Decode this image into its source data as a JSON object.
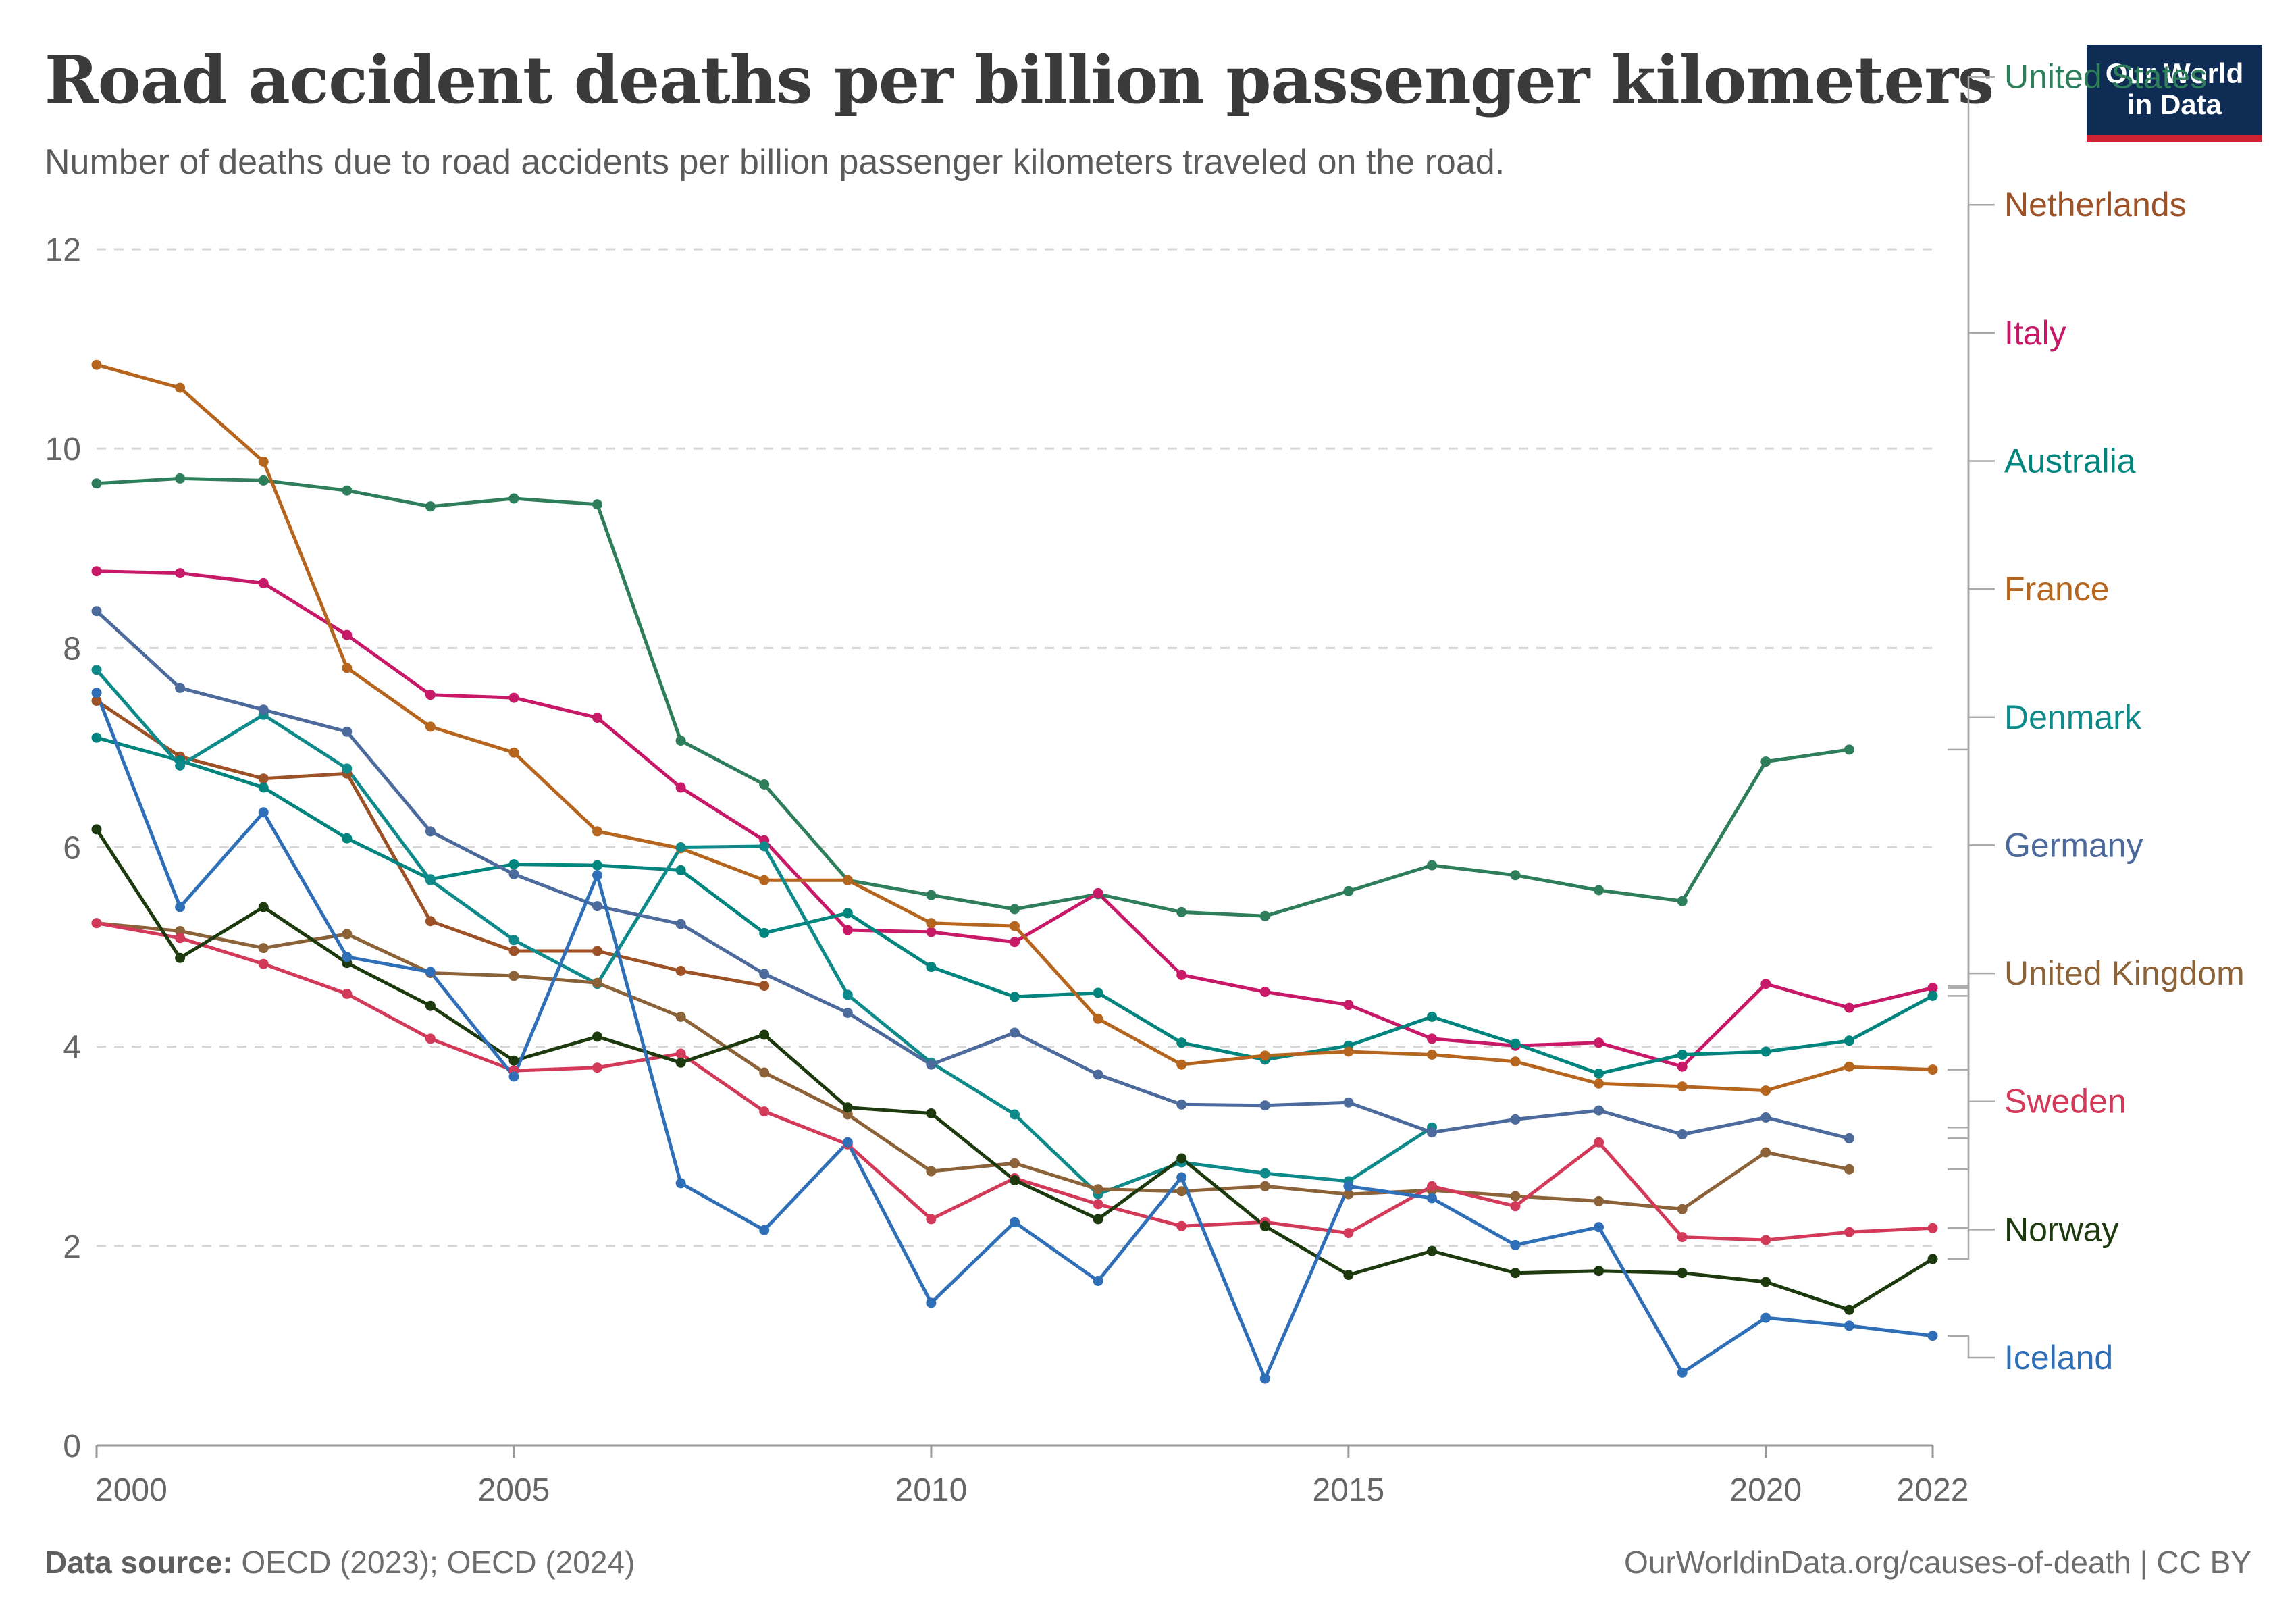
{
  "header": {
    "title": "Road accident deaths per billion passenger kilometers",
    "subtitle": "Number of deaths due to road accidents per billion passenger kilometers traveled on the road.",
    "logo_line1": "Our World",
    "logo_line2": "in Data"
  },
  "footer": {
    "source_label": "Data source:",
    "source_text": " OECD (2023); OECD (2024)",
    "credit": "OurWorldinData.org/causes-of-death | CC BY"
  },
  "chart_data": {
    "type": "line",
    "x_ticks": [
      2000,
      2005,
      2010,
      2015,
      2020,
      2022
    ],
    "y_ticks": [
      0,
      2,
      4,
      6,
      8,
      10,
      12
    ],
    "xlim": [
      2000,
      2022
    ],
    "ylim": [
      0,
      12
    ],
    "grid": "horizontal-dashed",
    "legend": "right-labels",
    "series": [
      {
        "name": "United States",
        "color": "#2e7d5b",
        "points": [
          [
            2000,
            9.65
          ],
          [
            2001,
            9.7
          ],
          [
            2002,
            9.68
          ],
          [
            2003,
            9.58
          ],
          [
            2004,
            9.42
          ],
          [
            2005,
            9.5
          ],
          [
            2006,
            9.44
          ],
          [
            2007,
            7.07
          ],
          [
            2008,
            6.63
          ],
          [
            2009,
            5.67
          ],
          [
            2010,
            5.52
          ],
          [
            2011,
            5.38
          ],
          [
            2012,
            5.53
          ],
          [
            2013,
            5.35
          ],
          [
            2014,
            5.31
          ],
          [
            2015,
            5.56
          ],
          [
            2016,
            5.82
          ],
          [
            2017,
            5.72
          ],
          [
            2018,
            5.57
          ],
          [
            2019,
            5.46
          ],
          [
            2020,
            6.86
          ],
          [
            2021,
            6.98
          ]
        ]
      },
      {
        "name": "Netherlands",
        "color": "#9c5127",
        "points": [
          [
            2000,
            7.47
          ],
          [
            2001,
            6.91
          ],
          [
            2002,
            6.69
          ],
          [
            2003,
            6.74
          ],
          [
            2004,
            5.26
          ],
          [
            2005,
            4.96
          ],
          [
            2006,
            4.96
          ],
          [
            2007,
            4.76
          ],
          [
            2008,
            4.61
          ]
        ]
      },
      {
        "name": "Italy",
        "color": "#c81868",
        "points": [
          [
            2000,
            8.77
          ],
          [
            2001,
            8.75
          ],
          [
            2002,
            8.65
          ],
          [
            2003,
            8.13
          ],
          [
            2004,
            7.53
          ],
          [
            2005,
            7.5
          ],
          [
            2006,
            7.3
          ],
          [
            2007,
            6.6
          ],
          [
            2008,
            6.07
          ],
          [
            2009,
            5.17
          ],
          [
            2010,
            5.15
          ],
          [
            2011,
            5.05
          ],
          [
            2012,
            5.54
          ],
          [
            2013,
            4.72
          ],
          [
            2014,
            4.55
          ],
          [
            2015,
            4.42
          ],
          [
            2016,
            4.08
          ],
          [
            2017,
            4.01
          ],
          [
            2018,
            4.04
          ],
          [
            2019,
            3.8
          ],
          [
            2020,
            4.63
          ],
          [
            2021,
            4.39
          ],
          [
            2022,
            4.59
          ]
        ]
      },
      {
        "name": "Australia",
        "color": "#00847e",
        "points": [
          [
            2000,
            7.1
          ],
          [
            2001,
            6.87
          ],
          [
            2002,
            6.6
          ],
          [
            2003,
            6.09
          ],
          [
            2004,
            5.68
          ],
          [
            2005,
            5.83
          ],
          [
            2006,
            5.82
          ],
          [
            2007,
            5.77
          ],
          [
            2008,
            5.14
          ],
          [
            2009,
            5.34
          ],
          [
            2010,
            4.8
          ],
          [
            2011,
            4.5
          ],
          [
            2012,
            4.54
          ],
          [
            2013,
            4.04
          ],
          [
            2014,
            3.87
          ],
          [
            2015,
            4.01
          ],
          [
            2016,
            4.3
          ],
          [
            2017,
            4.03
          ],
          [
            2018,
            3.73
          ],
          [
            2019,
            3.92
          ],
          [
            2020,
            3.95
          ],
          [
            2021,
            4.06
          ],
          [
            2022,
            4.51
          ]
        ]
      },
      {
        "name": "France",
        "color": "#b5651d",
        "points": [
          [
            2000,
            10.84
          ],
          [
            2001,
            10.61
          ],
          [
            2002,
            9.87
          ],
          [
            2003,
            7.8
          ],
          [
            2004,
            7.21
          ],
          [
            2005,
            6.95
          ],
          [
            2006,
            6.16
          ],
          [
            2007,
            5.99
          ],
          [
            2008,
            5.67
          ],
          [
            2009,
            5.67
          ],
          [
            2010,
            5.24
          ],
          [
            2011,
            5.21
          ],
          [
            2012,
            4.28
          ],
          [
            2013,
            3.82
          ],
          [
            2014,
            3.91
          ],
          [
            2015,
            3.95
          ],
          [
            2016,
            3.92
          ],
          [
            2017,
            3.85
          ],
          [
            2018,
            3.63
          ],
          [
            2019,
            3.6
          ],
          [
            2020,
            3.56
          ],
          [
            2021,
            3.8
          ],
          [
            2022,
            3.77
          ]
        ]
      },
      {
        "name": "Denmark",
        "color": "#0f8a8a",
        "points": [
          [
            2000,
            7.78
          ],
          [
            2001,
            6.82
          ],
          [
            2002,
            7.33
          ],
          [
            2003,
            6.79
          ],
          [
            2004,
            5.67
          ],
          [
            2005,
            5.07
          ],
          [
            2006,
            4.63
          ],
          [
            2007,
            6.0
          ],
          [
            2008,
            6.01
          ],
          [
            2009,
            4.52
          ],
          [
            2010,
            3.84
          ],
          [
            2011,
            3.32
          ],
          [
            2012,
            2.52
          ],
          [
            2013,
            2.84
          ],
          [
            2014,
            2.73
          ],
          [
            2015,
            2.65
          ],
          [
            2016,
            3.19
          ]
        ]
      },
      {
        "name": "Germany",
        "color": "#4c6a9c",
        "points": [
          [
            2000,
            8.37
          ],
          [
            2001,
            7.6
          ],
          [
            2002,
            7.38
          ],
          [
            2003,
            7.16
          ],
          [
            2004,
            6.16
          ],
          [
            2005,
            5.73
          ],
          [
            2006,
            5.41
          ],
          [
            2007,
            5.23
          ],
          [
            2008,
            4.73
          ],
          [
            2009,
            4.34
          ],
          [
            2010,
            3.82
          ],
          [
            2011,
            4.14
          ],
          [
            2012,
            3.72
          ],
          [
            2013,
            3.42
          ],
          [
            2014,
            3.41
          ],
          [
            2015,
            3.44
          ],
          [
            2016,
            3.14
          ],
          [
            2017,
            3.27
          ],
          [
            2018,
            3.36
          ],
          [
            2019,
            3.12
          ],
          [
            2020,
            3.29
          ],
          [
            2021,
            3.08
          ]
        ]
      },
      {
        "name": "United Kingdom",
        "color": "#8c6239",
        "points": [
          [
            2000,
            5.24
          ],
          [
            2001,
            5.16
          ],
          [
            2002,
            4.99
          ],
          [
            2003,
            5.13
          ],
          [
            2004,
            4.74
          ],
          [
            2005,
            4.71
          ],
          [
            2006,
            4.64
          ],
          [
            2007,
            4.3
          ],
          [
            2008,
            3.74
          ],
          [
            2009,
            3.32
          ],
          [
            2010,
            2.75
          ],
          [
            2011,
            2.83
          ],
          [
            2012,
            2.57
          ],
          [
            2013,
            2.55
          ],
          [
            2014,
            2.6
          ],
          [
            2015,
            2.52
          ],
          [
            2016,
            2.56
          ],
          [
            2017,
            2.5
          ],
          [
            2018,
            2.45
          ],
          [
            2019,
            2.37
          ],
          [
            2020,
            2.94
          ],
          [
            2021,
            2.77
          ]
        ]
      },
      {
        "name": "Sweden",
        "color": "#d33a5a",
        "points": [
          [
            2000,
            5.24
          ],
          [
            2001,
            5.09
          ],
          [
            2002,
            4.83
          ],
          [
            2003,
            4.53
          ],
          [
            2004,
            4.08
          ],
          [
            2005,
            3.76
          ],
          [
            2006,
            3.79
          ],
          [
            2007,
            3.93
          ],
          [
            2008,
            3.35
          ],
          [
            2009,
            3.02
          ],
          [
            2010,
            2.27
          ],
          [
            2011,
            2.68
          ],
          [
            2012,
            2.42
          ],
          [
            2013,
            2.2
          ],
          [
            2014,
            2.24
          ],
          [
            2015,
            2.13
          ],
          [
            2016,
            2.6
          ],
          [
            2017,
            2.4
          ],
          [
            2018,
            3.04
          ],
          [
            2019,
            2.09
          ],
          [
            2020,
            2.06
          ],
          [
            2021,
            2.14
          ],
          [
            2022,
            2.18
          ]
        ]
      },
      {
        "name": "Norway",
        "color": "#1c3a0e",
        "points": [
          [
            2000,
            6.18
          ],
          [
            2001,
            4.89
          ],
          [
            2002,
            5.4
          ],
          [
            2003,
            4.84
          ],
          [
            2004,
            4.41
          ],
          [
            2005,
            3.86
          ],
          [
            2006,
            4.1
          ],
          [
            2007,
            3.84
          ],
          [
            2008,
            4.12
          ],
          [
            2009,
            3.39
          ],
          [
            2010,
            3.33
          ],
          [
            2011,
            2.66
          ],
          [
            2012,
            2.27
          ],
          [
            2013,
            2.88
          ],
          [
            2014,
            2.2
          ],
          [
            2015,
            1.71
          ],
          [
            2016,
            1.95
          ],
          [
            2017,
            1.73
          ],
          [
            2018,
            1.75
          ],
          [
            2019,
            1.73
          ],
          [
            2020,
            1.64
          ],
          [
            2021,
            1.36
          ],
          [
            2022,
            1.87
          ]
        ]
      },
      {
        "name": "Iceland",
        "color": "#2f6fb8",
        "points": [
          [
            2000,
            7.55
          ],
          [
            2001,
            5.4
          ],
          [
            2002,
            6.35
          ],
          [
            2003,
            4.9
          ],
          [
            2004,
            4.75
          ],
          [
            2005,
            3.7
          ],
          [
            2006,
            5.72
          ],
          [
            2007,
            2.63
          ],
          [
            2008,
            2.16
          ],
          [
            2009,
            3.04
          ],
          [
            2010,
            1.43
          ],
          [
            2011,
            2.24
          ],
          [
            2012,
            1.65
          ],
          [
            2013,
            2.69
          ],
          [
            2014,
            0.67
          ],
          [
            2015,
            2.6
          ],
          [
            2016,
            2.48
          ],
          [
            2017,
            2.01
          ],
          [
            2018,
            2.19
          ],
          [
            2019,
            0.73
          ],
          [
            2020,
            1.28
          ],
          [
            2021,
            1.2
          ],
          [
            2022,
            1.1
          ]
        ]
      }
    ]
  }
}
